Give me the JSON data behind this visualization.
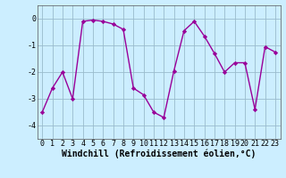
{
  "x": [
    0,
    1,
    2,
    3,
    4,
    5,
    6,
    7,
    8,
    9,
    10,
    11,
    12,
    13,
    14,
    15,
    16,
    17,
    18,
    19,
    20,
    21,
    22,
    23
  ],
  "y": [
    -3.5,
    -2.6,
    -2.0,
    -3.0,
    -0.1,
    -0.05,
    -0.1,
    -0.2,
    -0.4,
    -2.6,
    -2.85,
    -3.5,
    -3.7,
    -1.95,
    -0.45,
    -0.1,
    -0.65,
    -1.3,
    -2.0,
    -1.65,
    -1.65,
    -3.4,
    -1.05,
    -1.25
  ],
  "line_color": "#990099",
  "marker": "D",
  "marker_size": 2.2,
  "bg_color": "#cceeff",
  "grid_color": "#99bbcc",
  "xlabel": "Windchill (Refroidissement éolien,°C)",
  "xlabel_fontsize": 7,
  "ylim": [
    -4.5,
    0.5
  ],
  "xlim": [
    -0.5,
    23.5
  ],
  "yticks": [
    0,
    -1,
    -2,
    -3,
    -4
  ],
  "xticks": [
    0,
    1,
    2,
    3,
    4,
    5,
    6,
    7,
    8,
    9,
    10,
    11,
    12,
    13,
    14,
    15,
    16,
    17,
    18,
    19,
    20,
    21,
    22,
    23
  ],
  "tick_fontsize": 6,
  "line_width": 1.0
}
